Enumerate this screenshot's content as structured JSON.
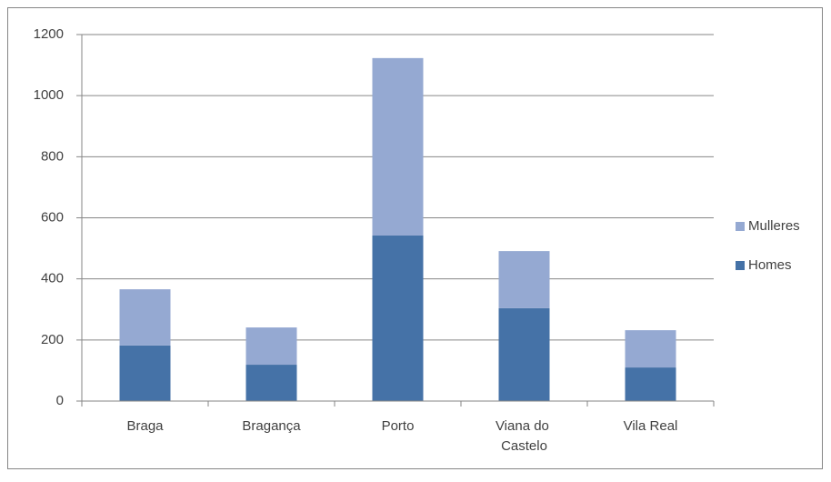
{
  "chart_data": {
    "type": "stacked_bar",
    "categories": [
      "Braga",
      "Bragança",
      "Porto",
      "Viana do Castelo",
      "Vila Real"
    ],
    "series": [
      {
        "name": "Homes",
        "color": "#4572a7",
        "values": [
          182,
          119,
          542,
          304,
          110
        ]
      },
      {
        "name": "Mulleres",
        "color": "#95a9d2",
        "values": [
          184,
          122,
          581,
          187,
          122
        ]
      }
    ],
    "ylim": [
      0,
      1200
    ],
    "yticks": [
      0,
      200,
      400,
      600,
      800,
      1000,
      1200
    ],
    "grid": true,
    "legend": "right"
  }
}
